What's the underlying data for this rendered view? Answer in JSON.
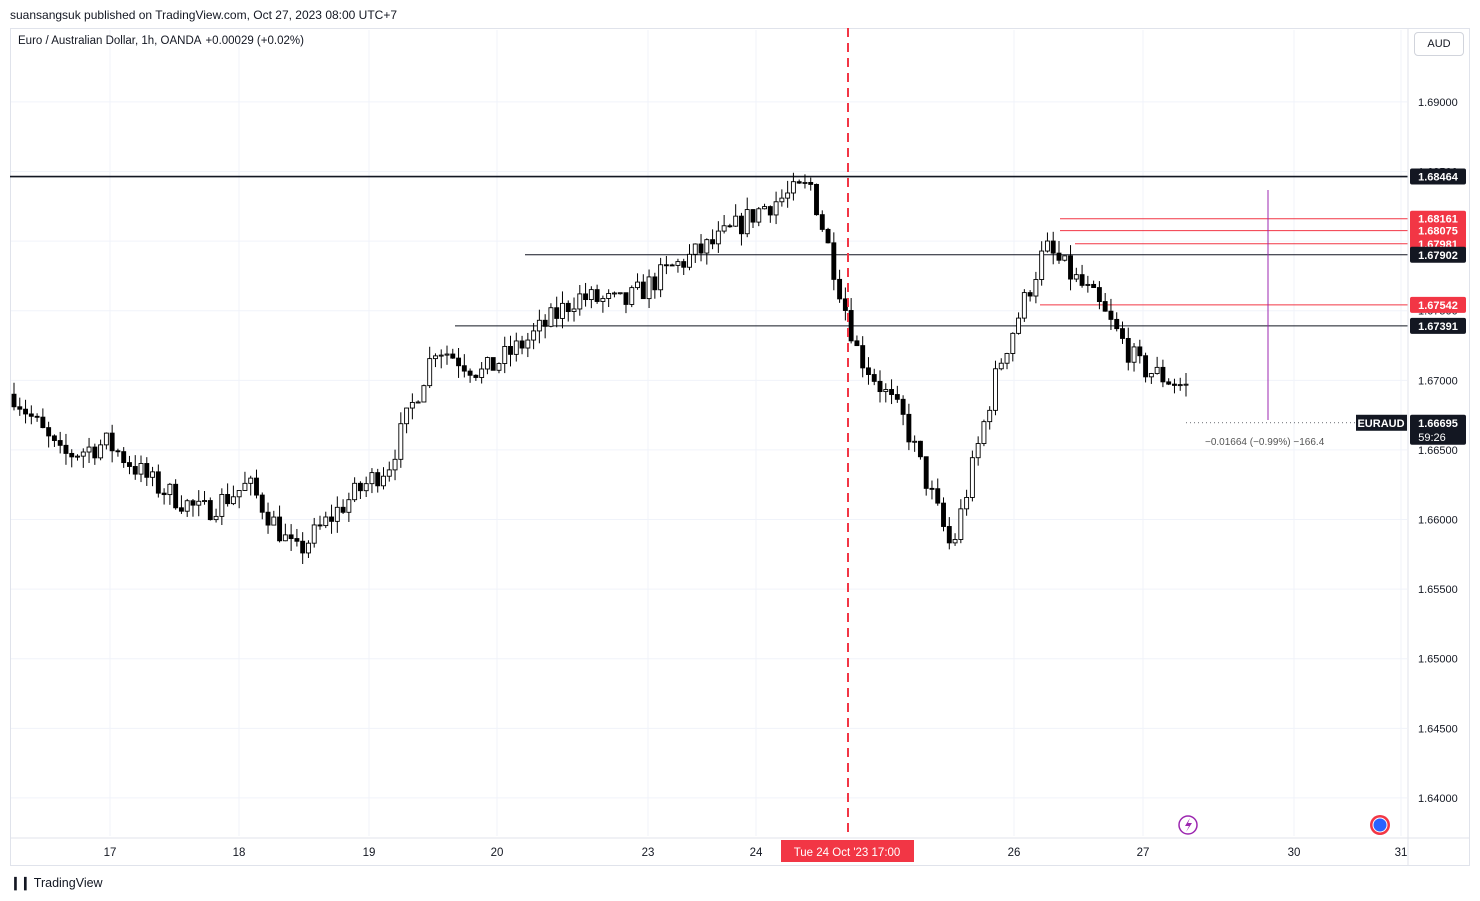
{
  "header": {
    "published_by": "suansangsuk published on TradingView.com, Oct 27, 2023 08:00 UTC+7"
  },
  "legend": {
    "symbol_desc": "Euro / Australian Dollar, 1h, OANDA",
    "change": "+0.00029 (+0.02%)"
  },
  "currency_label": "AUD",
  "footer": {
    "brand": "TradingView"
  },
  "colors": {
    "up": "#ffffff",
    "down": "#000000",
    "red_level": "#f23645",
    "crosshair": "#f23645",
    "measure": "#9c27b0"
  },
  "chart_data": {
    "type": "candlestick",
    "symbol": "EURAUD",
    "price_axis": {
      "ticks": [
        "1.69000",
        "1.68500",
        "1.68000",
        "1.67500",
        "1.67000",
        "1.66500",
        "1.66000",
        "1.65500",
        "1.65000",
        "1.64500",
        "1.64000"
      ],
      "min": 1.6373,
      "max": 1.6937
    },
    "time_axis": {
      "ticks": [
        "17",
        "18",
        "19",
        "20",
        "23",
        "24",
        "26",
        "27",
        "30",
        "31"
      ],
      "crosshair_label": "Tue 24 Oct '23   17:00"
    },
    "horizontal_levels": [
      {
        "price": 1.68464,
        "label": "1.68464",
        "style": "dark"
      },
      {
        "price": 1.68161,
        "label": "1.68161",
        "style": "red"
      },
      {
        "price": 1.68075,
        "label": "1.68075",
        "style": "red"
      },
      {
        "price": 1.67981,
        "label": "1.67981",
        "style": "red"
      },
      {
        "price": 1.67902,
        "label": "1.67902",
        "style": "dark"
      },
      {
        "price": 1.67542,
        "label": "1.67542",
        "style": "red"
      },
      {
        "price": 1.67391,
        "label": "1.67391",
        "style": "dark"
      }
    ],
    "last_price": {
      "symbol": "EURAUD",
      "price": "1.66695",
      "countdown": "59:26",
      "value": 1.66695
    },
    "measure_text": "−0.01664 (−0.99%) −166.4",
    "close_path": [
      {
        "x": "16 Oct",
        "y": 1.669
      },
      {
        "x": "17 Oct",
        "y": 1.6645
      },
      {
        "x": "17 Oct",
        "y": 1.6655
      },
      {
        "x": "18 Oct",
        "y": 1.6625
      },
      {
        "x": "18 Oct",
        "y": 1.6605
      },
      {
        "x": "18 Oct",
        "y": 1.6625
      },
      {
        "x": "19 Oct",
        "y": 1.6575
      },
      {
        "x": "19 Oct",
        "y": 1.661
      },
      {
        "x": "19 Oct",
        "y": 1.664
      },
      {
        "x": "20 Oct",
        "y": 1.6725
      },
      {
        "x": "20 Oct",
        "y": 1.6705
      },
      {
        "x": "20 Oct",
        "y": 1.673
      },
      {
        "x": "23 Oct",
        "y": 1.676
      },
      {
        "x": "23 Oct",
        "y": 1.6755
      },
      {
        "x": "23 Oct",
        "y": 1.678
      },
      {
        "x": "24 Oct",
        "y": 1.68
      },
      {
        "x": "24 Oct",
        "y": 1.6825
      },
      {
        "x": "24 Oct",
        "y": 1.684
      },
      {
        "x": "25 Oct",
        "y": 1.672
      },
      {
        "x": "25 Oct",
        "y": 1.667
      },
      {
        "x": "25 Oct",
        "y": 1.6578
      },
      {
        "x": "26 Oct",
        "y": 1.671
      },
      {
        "x": "26 Oct",
        "y": 1.6795
      },
      {
        "x": "26 Oct",
        "y": 1.676
      },
      {
        "x": "27 Oct",
        "y": 1.671
      },
      {
        "x": "27 Oct",
        "y": 1.6695
      }
    ]
  }
}
